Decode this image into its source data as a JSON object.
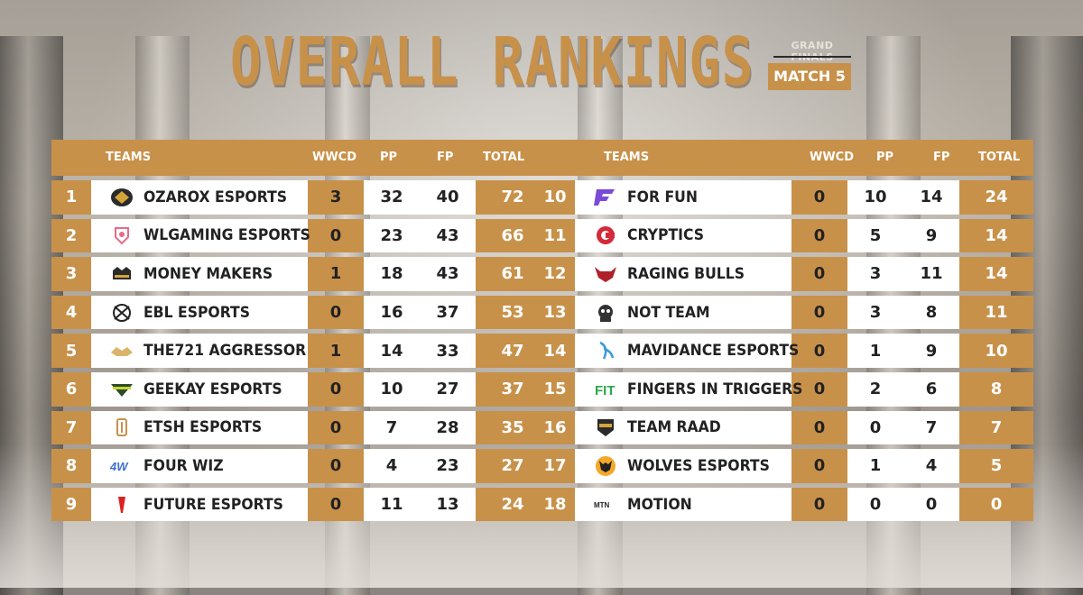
{
  "title": "OVERALL RANKINGS",
  "subtitle": "GRAND FINALS",
  "match_label": "MATCH 5",
  "colors": {
    "accent": "#c8914a",
    "row_white": "#ffffff",
    "text_dark": "#222222"
  },
  "headers": {
    "teams": "TEAMS",
    "wwcd": "WWCD",
    "pp": "PP",
    "fp": "FP",
    "total": "TOTAL"
  },
  "left_rows": [
    {
      "rank": "1",
      "team": "OZAROX ESPORTS",
      "wwcd": "3",
      "pp": "32",
      "fp": "40",
      "total": "72",
      "logo": "ozarox-logo"
    },
    {
      "rank": "2",
      "team": "WLGAMING ESPORTS",
      "wwcd": "0",
      "pp": "23",
      "fp": "43",
      "total": "66",
      "logo": "wlgaming-logo"
    },
    {
      "rank": "3",
      "team": "MONEY MAKERS",
      "wwcd": "1",
      "pp": "18",
      "fp": "43",
      "total": "61",
      "logo": "money-makers-logo"
    },
    {
      "rank": "4",
      "team": "EBL ESPORTS",
      "wwcd": "0",
      "pp": "16",
      "fp": "37",
      "total": "53",
      "logo": "ebl-logo"
    },
    {
      "rank": "5",
      "team": "THE721 AGGRESSOR",
      "wwcd": "1",
      "pp": "14",
      "fp": "33",
      "total": "47",
      "logo": "the721-logo"
    },
    {
      "rank": "6",
      "team": "GEEKAY ESPORTS",
      "wwcd": "0",
      "pp": "10",
      "fp": "27",
      "total": "37",
      "logo": "geekay-logo"
    },
    {
      "rank": "7",
      "team": "ETSH ESPORTS",
      "wwcd": "0",
      "pp": "7",
      "fp": "28",
      "total": "35",
      "logo": "etsh-logo"
    },
    {
      "rank": "8",
      "team": "FOUR WIZ",
      "wwcd": "0",
      "pp": "4",
      "fp": "23",
      "total": "27",
      "logo": "four-wiz-logo"
    },
    {
      "rank": "9",
      "team": "FUTURE ESPORTS",
      "wwcd": "0",
      "pp": "11",
      "fp": "13",
      "total": "24",
      "logo": "future-logo"
    }
  ],
  "right_rows": [
    {
      "rank": "10",
      "team": "FOR FUN",
      "wwcd": "0",
      "pp": "10",
      "fp": "14",
      "total": "24",
      "logo": "for-fun-logo"
    },
    {
      "rank": "11",
      "team": "CRYPTICS",
      "wwcd": "0",
      "pp": "5",
      "fp": "9",
      "total": "14",
      "logo": "cryptics-logo"
    },
    {
      "rank": "12",
      "team": "RAGING BULLS",
      "wwcd": "0",
      "pp": "3",
      "fp": "11",
      "total": "14",
      "logo": "raging-bulls-logo"
    },
    {
      "rank": "13",
      "team": "NOT TEAM",
      "wwcd": "0",
      "pp": "3",
      "fp": "8",
      "total": "11",
      "logo": "not-team-logo"
    },
    {
      "rank": "14",
      "team": "MAVIDANCE ESPORTS",
      "wwcd": "0",
      "pp": "1",
      "fp": "9",
      "total": "10",
      "logo": "mavidance-logo"
    },
    {
      "rank": "15",
      "team": "FINGERS IN TRIGGERS",
      "wwcd": "0",
      "pp": "2",
      "fp": "6",
      "total": "8",
      "logo": "fingers-in-triggers-logo"
    },
    {
      "rank": "16",
      "team": "TEAM RAAD",
      "wwcd": "0",
      "pp": "0",
      "fp": "7",
      "total": "7",
      "logo": "team-raad-logo"
    },
    {
      "rank": "17",
      "team": "WOLVES ESPORTS",
      "wwcd": "0",
      "pp": "1",
      "fp": "4",
      "total": "5",
      "logo": "wolves-logo"
    },
    {
      "rank": "18",
      "team": "MOTION",
      "wwcd": "0",
      "pp": "0",
      "fp": "0",
      "total": "0",
      "logo": "motion-logo"
    }
  ]
}
